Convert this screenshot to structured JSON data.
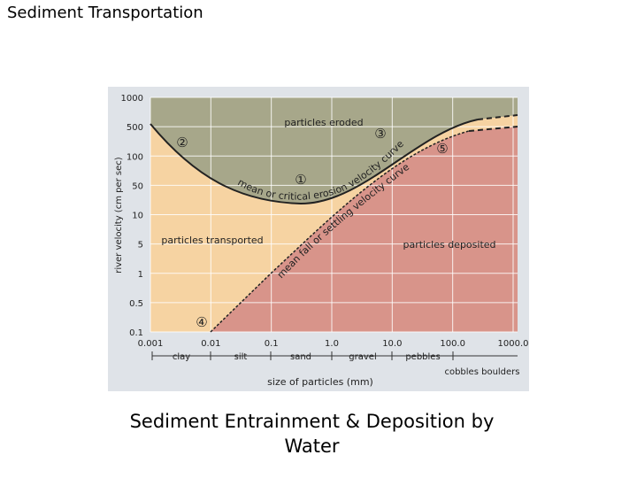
{
  "slide": {
    "title": "Sediment Transportation",
    "caption": "Sediment Entrainment & Deposition by Water"
  },
  "figure": {
    "regions": [
      "particles eroded",
      "particles transported",
      "particles deposited"
    ],
    "curves": [
      "mean or critical erosion velocity curve",
      "mean fall or settling velocity curve"
    ],
    "markers": [
      "①",
      "②",
      "③",
      "④",
      "⑤"
    ],
    "y_axis_label": "river velocity (cm per sec)",
    "y_ticks": [
      "1000",
      "500",
      "100",
      "50",
      "10",
      "5",
      "1",
      "0.5",
      "0.1"
    ],
    "x_ticks": [
      "0.001",
      "0.01",
      "0.1",
      "1.0",
      "10.0",
      "100.0",
      "1000.0"
    ],
    "x_axis_label": "size of particles (mm)",
    "size_classes": [
      "clay",
      "silt",
      "sand",
      "gravel",
      "pebbles",
      "cobbles boulders"
    ]
  }
}
